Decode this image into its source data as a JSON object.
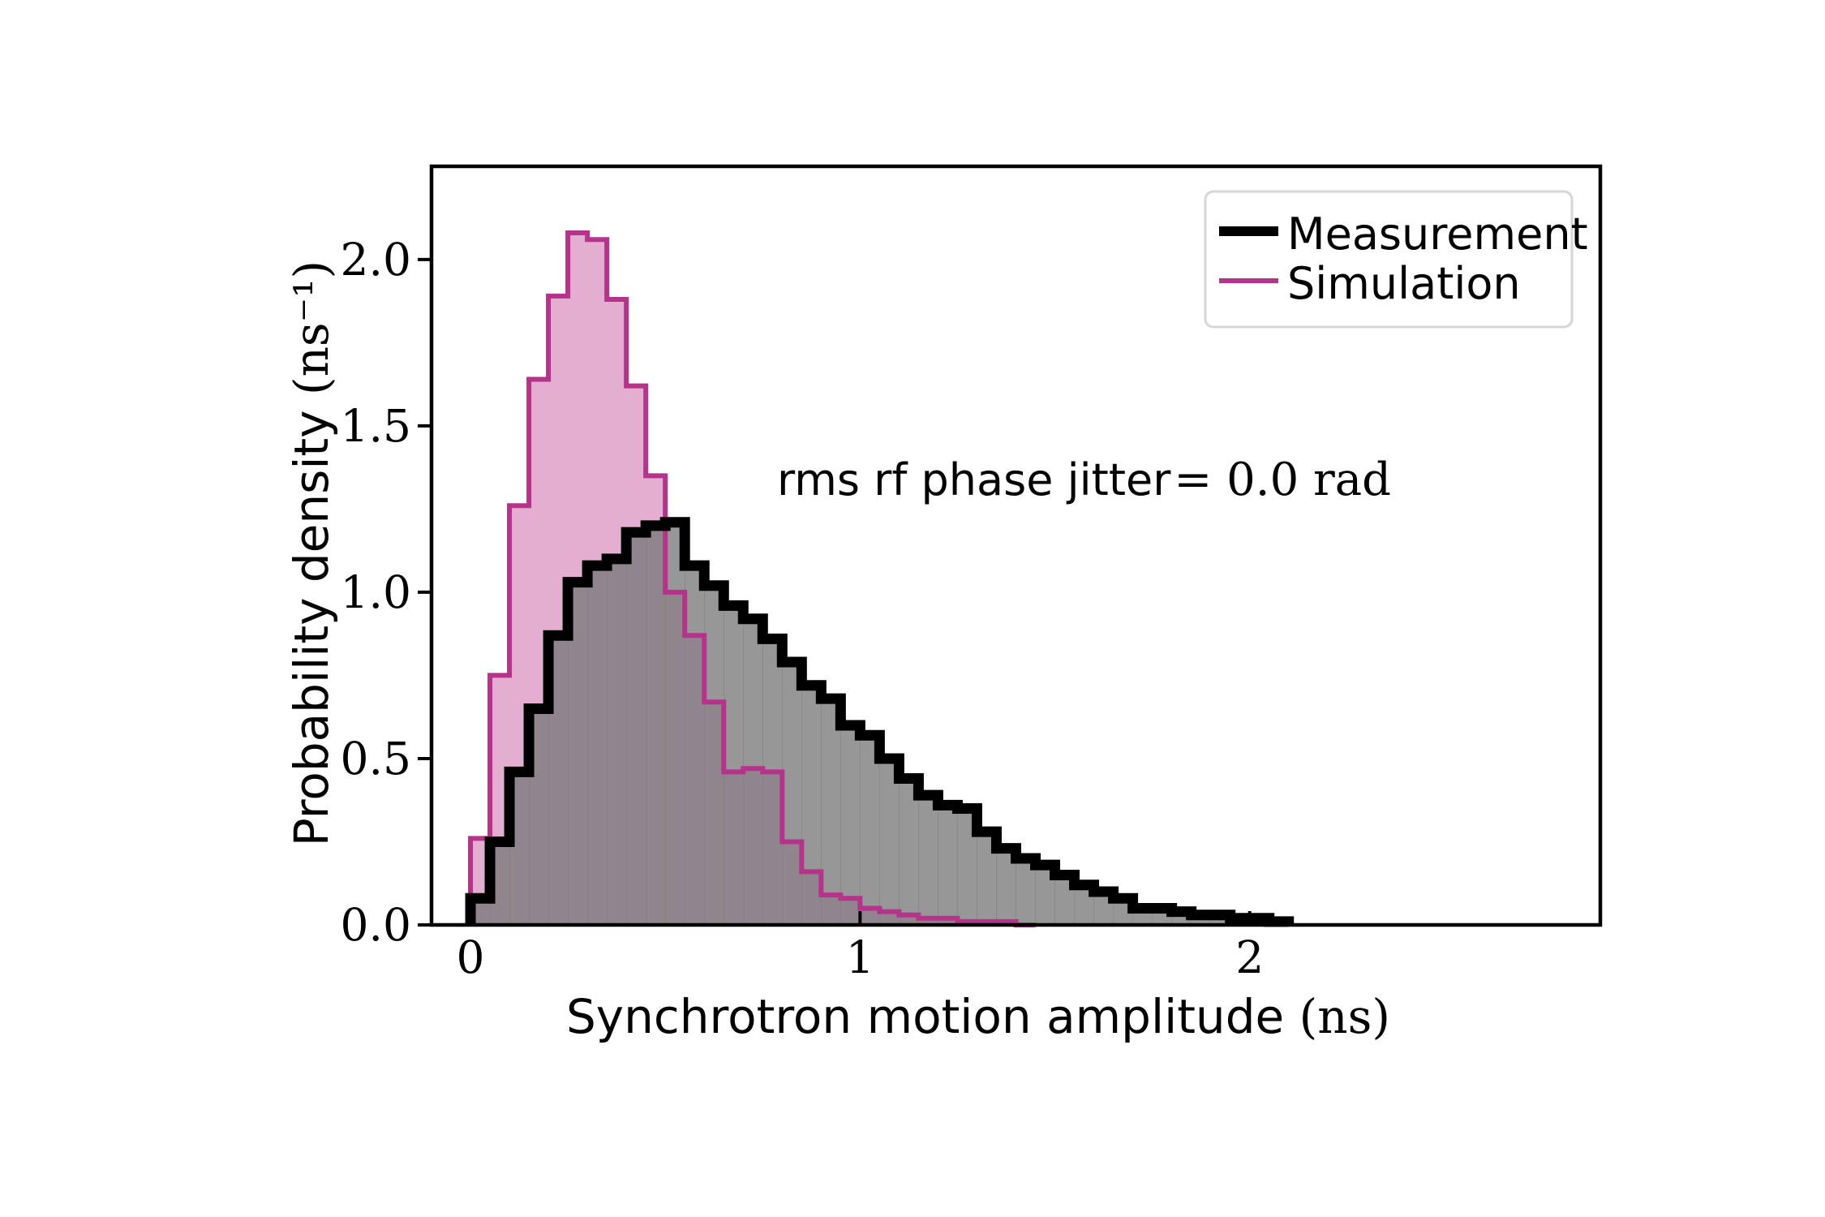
{
  "chart_data": {
    "type": "histogram",
    "xlabel": "Synchrotron motion amplitude",
    "xlabel_unit": "(ns)",
    "ylabel": "Probability density",
    "ylabel_unit": "(ns⁻¹)",
    "xlim": [
      -0.1,
      2.9
    ],
    "ylim": [
      0.0,
      2.28
    ],
    "x_ticks": [
      0,
      1,
      2
    ],
    "x_tick_labels": [
      "0",
      "1",
      "2"
    ],
    "y_ticks": [
      0.0,
      0.5,
      1.0,
      1.5,
      2.0
    ],
    "y_tick_labels": [
      "0.0",
      "0.5",
      "1.0",
      "1.5",
      "2.0"
    ],
    "grid": false,
    "legend_position": "top-right",
    "annotation": {
      "prefix": "rms rf phase jitter",
      "math": "= 0.0 rad"
    },
    "bin_width": 0.05,
    "series": [
      {
        "name": "Simulation",
        "color": "#b5338a",
        "fill": "#e3aecf",
        "bin_start": 0.0,
        "values": [
          0.26,
          0.75,
          1.26,
          1.64,
          1.89,
          2.08,
          2.06,
          1.88,
          1.62,
          1.35,
          1.0,
          0.87,
          0.67,
          0.46,
          0.47,
          0.46,
          0.25,
          0.16,
          0.09,
          0.08,
          0.05,
          0.04,
          0.03,
          0.02,
          0.02,
          0.01,
          0.01,
          0.01,
          0.0
        ]
      },
      {
        "name": "Measurement",
        "color": "#000000",
        "fill": "#7a7a7a",
        "bin_start": 0.0,
        "values": [
          0.08,
          0.25,
          0.46,
          0.65,
          0.87,
          1.03,
          1.08,
          1.1,
          1.18,
          1.2,
          1.21,
          1.08,
          1.02,
          0.96,
          0.92,
          0.86,
          0.79,
          0.72,
          0.68,
          0.6,
          0.57,
          0.5,
          0.44,
          0.39,
          0.36,
          0.35,
          0.28,
          0.23,
          0.2,
          0.18,
          0.15,
          0.12,
          0.1,
          0.08,
          0.05,
          0.05,
          0.04,
          0.03,
          0.03,
          0.02,
          0.02,
          0.01
        ]
      }
    ]
  }
}
